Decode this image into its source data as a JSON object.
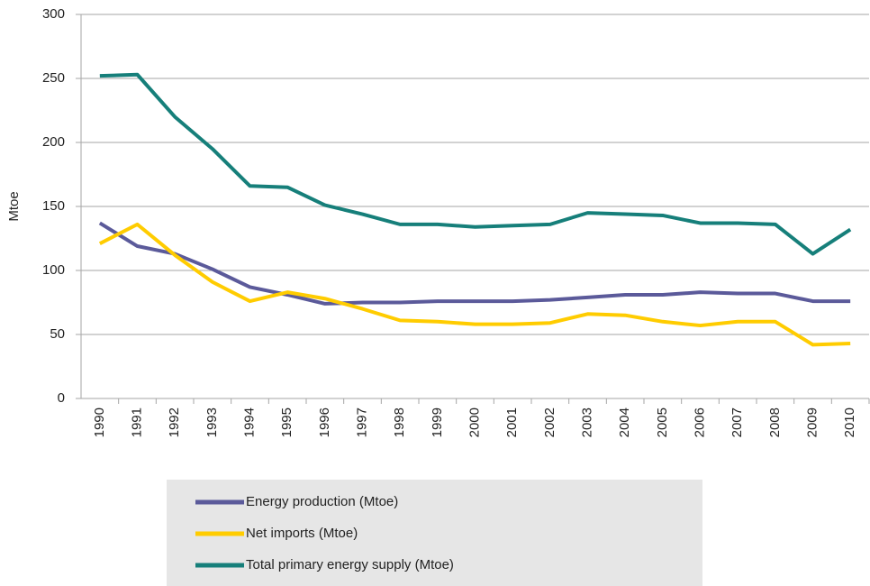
{
  "chart_data": {
    "type": "line",
    "y_label": "Mtoe",
    "categories": [
      "1990",
      "1991",
      "1992",
      "1993",
      "1994",
      "1995",
      "1996",
      "1997",
      "1998",
      "1999",
      "2000",
      "2001",
      "2002",
      "2003",
      "2004",
      "2005",
      "2006",
      "2007",
      "2008",
      "2009",
      "2010"
    ],
    "series": [
      {
        "name": "Energy production (Mtoe)",
        "color": "#5b5a9a",
        "values": [
          137,
          119,
          113,
          101,
          87,
          81,
          74,
          75,
          75,
          76,
          76,
          76,
          77,
          79,
          81,
          81,
          83,
          82,
          82,
          76,
          76
        ]
      },
      {
        "name": "Net imports (Mtoe)",
        "color": "#ffcc00",
        "values": [
          121,
          136,
          112,
          91,
          76,
          83,
          78,
          70,
          61,
          60,
          58,
          58,
          59,
          66,
          65,
          60,
          57,
          60,
          60,
          42,
          43
        ]
      },
      {
        "name": "Total primary energy supply (Mtoe)",
        "color": "#167f7a",
        "values": [
          252,
          253,
          220,
          195,
          166,
          165,
          151,
          144,
          136,
          136,
          134,
          135,
          136,
          145,
          144,
          143,
          137,
          137,
          136,
          113,
          132
        ]
      }
    ],
    "ylim": [
      0,
      300
    ],
    "yticks": [
      0,
      50,
      100,
      150,
      200,
      250,
      300
    ],
    "grid": true,
    "legend": "bottom"
  }
}
